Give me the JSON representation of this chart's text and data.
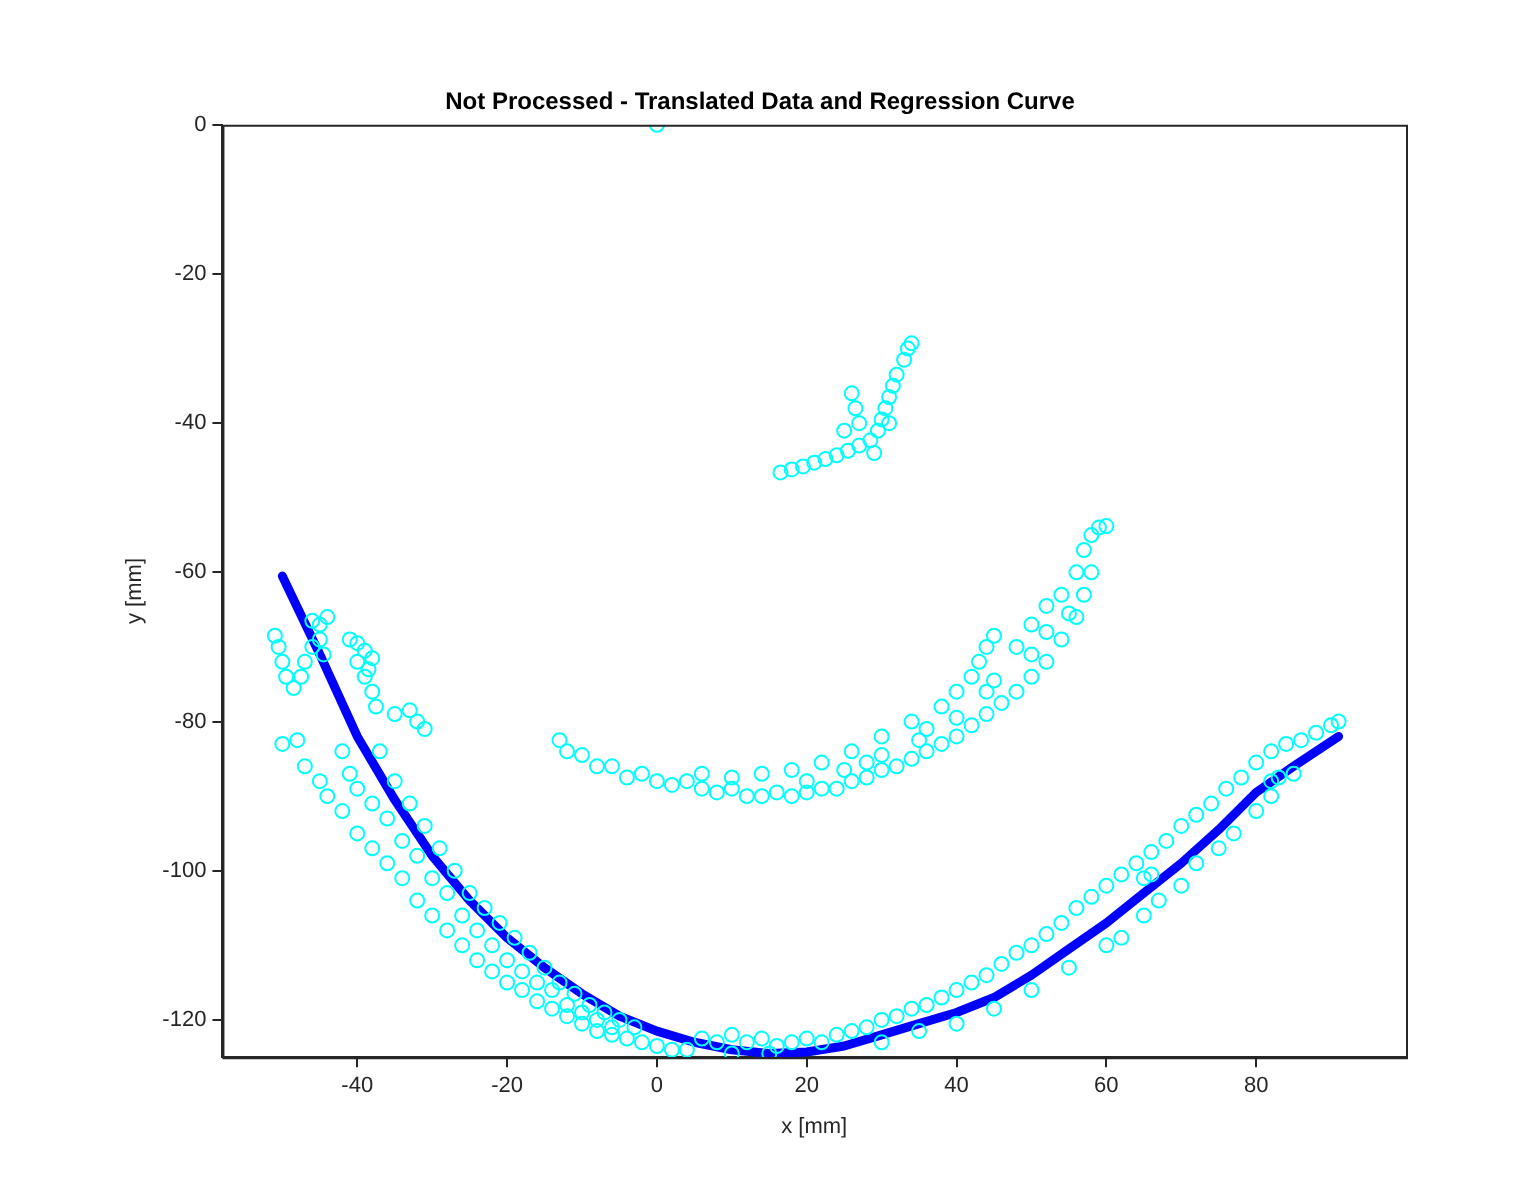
{
  "chart_data": {
    "type": "scatter",
    "title": "Not Processed - Translated Data and Regression Curve",
    "xlabel": "x [mm]",
    "ylabel": "y [mm]",
    "xlim": [
      -58,
      100
    ],
    "xticks": [
      -40,
      -20,
      0,
      20,
      40,
      60,
      80
    ],
    "ylim": [
      -125,
      0
    ],
    "yticks": [
      -120,
      -100,
      -80,
      -60,
      -40,
      -20,
      0
    ],
    "grid": false,
    "legend": false,
    "marker": "circle",
    "series": [
      {
        "color": "#00ffff",
        "x": [
          0,
          16.5,
          18,
          19.5,
          21,
          22.5,
          24,
          25.5,
          27,
          28.5,
          29.5,
          30,
          30.5,
          31,
          31.5,
          32,
          33,
          33.5,
          34,
          26,
          26.5,
          27,
          25,
          29,
          31,
          -13,
          -12,
          -10,
          -8,
          -6,
          -4,
          -2,
          0,
          2,
          4,
          6,
          8,
          10,
          12,
          14,
          16,
          18,
          20,
          22,
          24,
          26,
          28,
          30,
          32,
          34,
          36,
          38,
          40,
          42,
          44,
          46,
          48,
          50,
          52,
          54,
          56,
          57,
          58,
          6,
          10,
          14,
          18,
          22,
          26,
          30,
          34,
          38,
          40,
          42,
          43,
          44,
          45,
          48,
          50,
          52,
          54,
          56,
          57,
          58,
          59,
          60,
          20,
          25,
          30,
          35,
          40,
          45,
          50,
          55,
          28,
          36,
          44,
          52,
          -51,
          -50.5,
          -50,
          -49.5,
          -48.5,
          -47.5,
          -47,
          -46,
          -45,
          -44,
          -45,
          -44.5,
          -46,
          -41,
          -40,
          -39,
          -38,
          -40,
          -39,
          -38,
          -37.5,
          -38.5,
          -35,
          -33,
          -32,
          -31,
          -50,
          -48,
          -47,
          -45,
          -44,
          -42,
          -40,
          -38,
          -36,
          -34,
          -32,
          -30,
          -28,
          -26,
          -24,
          -22,
          -20,
          -18,
          -16,
          -14,
          -12,
          -10,
          -8,
          -6,
          -4,
          -2,
          0,
          2,
          4,
          -42,
          -41,
          -40,
          -38,
          -36,
          -34,
          -32,
          -30,
          -28,
          -26,
          -24,
          -22,
          -20,
          -18,
          -16,
          -14,
          -12,
          -10,
          -8,
          -6,
          -37,
          -35,
          -33,
          -31,
          -29,
          -27,
          -25,
          -23,
          -21,
          -19,
          -17,
          -15,
          -13,
          -11,
          -9,
          -7,
          -5,
          -3,
          6,
          8,
          10,
          12,
          14,
          16,
          18,
          20,
          22,
          24,
          26,
          28,
          30,
          32,
          34,
          36,
          38,
          40,
          42,
          44,
          46,
          48,
          50,
          52,
          54,
          56,
          58,
          60,
          62,
          64,
          66,
          68,
          70,
          72,
          74,
          76,
          78,
          80,
          82,
          84,
          86,
          88,
          90,
          91,
          30,
          35,
          40,
          45,
          50,
          55,
          60,
          65,
          70,
          75,
          80,
          85,
          62,
          67,
          72,
          77,
          82,
          65,
          66,
          82,
          83,
          10,
          15
        ],
        "values": [
          0,
          -46.6,
          -46.2,
          -45.8,
          -45.3,
          -44.8,
          -44.3,
          -43.7,
          -43,
          -42.3,
          -41,
          -39.5,
          -38,
          -36.5,
          -35,
          -33.5,
          -31.5,
          -30,
          -29.3,
          -36,
          -38,
          -40,
          -41,
          -44,
          -40,
          -82.5,
          -84,
          -84.5,
          -86,
          -86,
          -87.5,
          -87,
          -88,
          -88.5,
          -88,
          -89,
          -89.5,
          -89,
          -90,
          -90,
          -89.5,
          -90,
          -89.5,
          -89,
          -89,
          -88,
          -87.5,
          -86.5,
          -86,
          -85,
          -84,
          -83,
          -82,
          -80.5,
          -79,
          -77.5,
          -76,
          -74,
          -72,
          -69,
          -66,
          -63,
          -60,
          -87,
          -87.5,
          -87,
          -86.5,
          -85.5,
          -84,
          -82,
          -80,
          -78,
          -76,
          -74,
          -72,
          -70,
          -68.5,
          -70,
          -67,
          -64.5,
          -63,
          -60,
          -57,
          -55,
          -54,
          -53.8,
          -88,
          -86.5,
          -84.5,
          -82.5,
          -79.5,
          -74.5,
          -71,
          -65.5,
          -85.5,
          -81,
          -76,
          -68,
          -68.5,
          -70,
          -72,
          -74,
          -75.5,
          -74,
          -72,
          -66.5,
          -67,
          -66,
          -69,
          -71,
          -70,
          -69,
          -69.5,
          -70.5,
          -71.5,
          -72,
          -74,
          -76,
          -78,
          -73,
          -79,
          -78.5,
          -80,
          -81,
          -83,
          -82.5,
          -86,
          -88,
          -90,
          -92,
          -95,
          -97,
          -99,
          -101,
          -104,
          -106,
          -108,
          -110,
          -112,
          -113.5,
          -115,
          -116,
          -117.5,
          -118.5,
          -119.5,
          -120.5,
          -121.5,
          -122,
          -122.5,
          -123,
          -123.5,
          -124,
          -124,
          -84,
          -87,
          -89,
          -91,
          -93,
          -96,
          -98,
          -101,
          -103,
          -106,
          -108,
          -110,
          -112,
          -113.5,
          -115,
          -116,
          -118,
          -119,
          -120,
          -121,
          -84,
          -88,
          -91,
          -94,
          -97,
          -100,
          -103,
          -105,
          -107,
          -109,
          -111,
          -113,
          -115,
          -116.5,
          -118,
          -119,
          -120,
          -121,
          -122.5,
          -123,
          -122,
          -123,
          -122.5,
          -123.5,
          -123,
          -122.5,
          -123,
          -122,
          -121.5,
          -121,
          -120,
          -119.5,
          -118.5,
          -118,
          -117,
          -116,
          -115,
          -114,
          -112.5,
          -111,
          -110,
          -108.5,
          -107,
          -105,
          -103.5,
          -102,
          -100.5,
          -99,
          -97.5,
          -96,
          -94,
          -92.5,
          -91,
          -89,
          -87.5,
          -85.5,
          -84,
          -83,
          -82.5,
          -81.5,
          -80.5,
          -80,
          -123,
          -121.5,
          -120.5,
          -118.5,
          -116,
          -113,
          -110,
          -106,
          -102,
          -97,
          -92,
          -87,
          -109,
          -104,
          -99,
          -95,
          -90,
          -101,
          -100.5,
          -88,
          -87.5,
          -124.5,
          -124.5
        ]
      },
      {
        "type": "line",
        "color": "#0000ff",
        "marker": "none",
        "line_style": "solid",
        "x": [
          -50,
          -45,
          -40,
          -35,
          -30,
          -25,
          -20,
          -15,
          -10,
          -5,
          0,
          5,
          10,
          15,
          20,
          25,
          30,
          35,
          40,
          45,
          50,
          55,
          60,
          65,
          70,
          75,
          80,
          85,
          91
        ],
        "values": [
          -60.5,
          -71,
          -82,
          -90.5,
          -98,
          -104,
          -109,
          -113,
          -116.5,
          -119.5,
          -121.5,
          -123,
          -124,
          -124.5,
          -124.3,
          -123.5,
          -122,
          -120.5,
          -119,
          -117,
          -114,
          -110.5,
          -107,
          -103,
          -99,
          -94.5,
          -89.5,
          -86,
          -82
        ]
      }
    ]
  }
}
